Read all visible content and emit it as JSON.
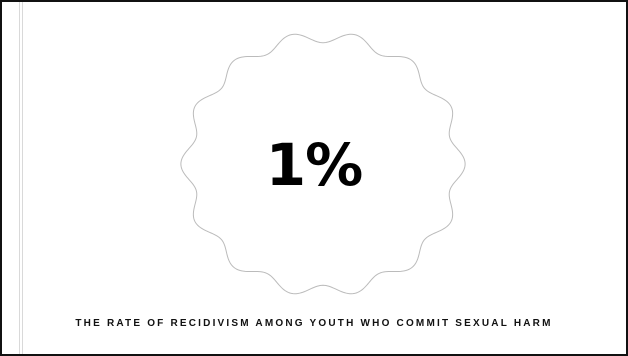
{
  "slide": {
    "statistic": "1%",
    "caption": "THE RATE OF RECIDIVISM AMONG YOUTH WHO COMMIT SEXUAL HARM"
  },
  "colors": {
    "background": "#ffffff",
    "border": "#111111",
    "badge_outline": "#bbbbbb",
    "text": "#000000"
  },
  "icons": {
    "badge": "scalloped-circle-shape"
  }
}
